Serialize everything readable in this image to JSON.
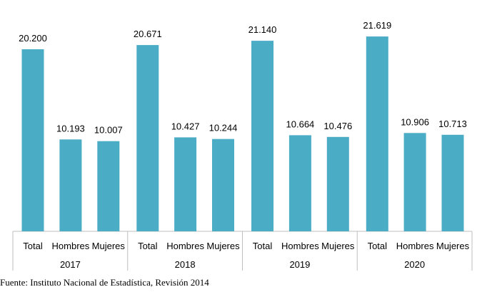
{
  "chart_data": {
    "type": "bar",
    "color": "#4BACC6",
    "groups": [
      {
        "label": "2017",
        "categories": [
          "Total",
          "Hombres",
          "Mujeres"
        ],
        "values": [
          20200,
          10193,
          10007
        ],
        "value_labels": [
          "20.200",
          "10.193",
          "10.007"
        ]
      },
      {
        "label": "2018",
        "categories": [
          "Total",
          "Hombres",
          "Mujeres"
        ],
        "values": [
          20671,
          10427,
          10244
        ],
        "value_labels": [
          "20.671",
          "10.427",
          "10.244"
        ]
      },
      {
        "label": "2019",
        "categories": [
          "Total",
          "Hombres",
          "Mujeres"
        ],
        "values": [
          21140,
          10664,
          10476
        ],
        "value_labels": [
          "21.140",
          "10.664",
          "10.476"
        ]
      },
      {
        "label": "2020",
        "categories": [
          "Total",
          "Hombres",
          "Mujeres"
        ],
        "values": [
          21619,
          10906,
          10713
        ],
        "value_labels": [
          "21.619",
          "10.906",
          "10.713"
        ]
      }
    ],
    "title": "",
    "xlabel": "",
    "ylabel": "",
    "ylim": [
      0,
      25000
    ],
    "grid": false,
    "legend": "none"
  },
  "source": "Fuente: Instituto Nacional de Estadística, Revisión 2014"
}
